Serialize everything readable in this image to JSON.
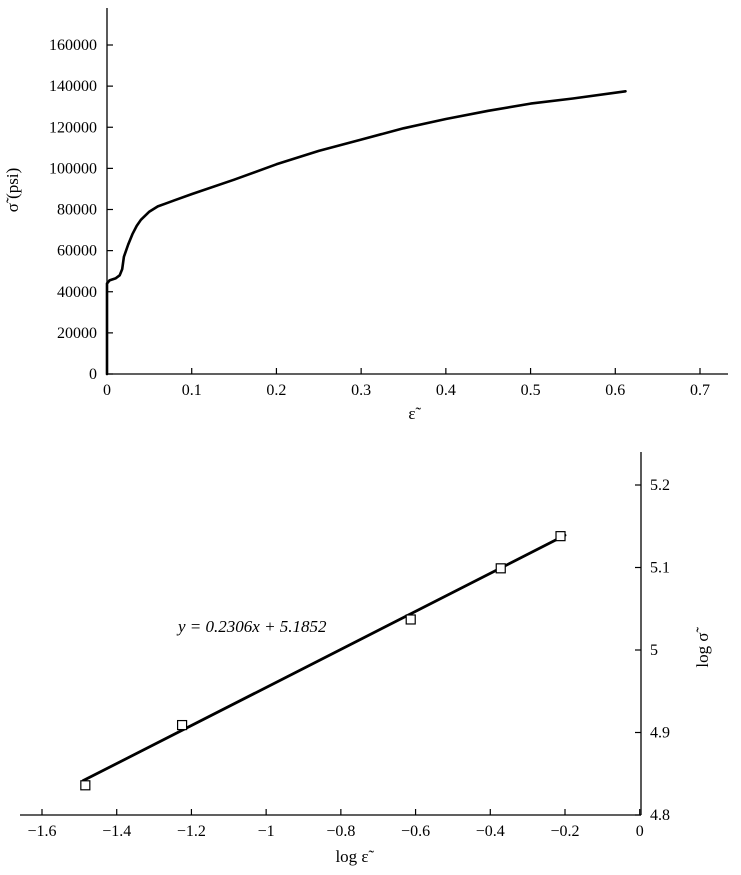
{
  "chart_data": [
    {
      "type": "line",
      "xlabel": "ε̃",
      "ylabel": "σ̃ (psi)",
      "xlim": [
        0,
        0.7
      ],
      "ylim": [
        0,
        160000
      ],
      "xticks": [
        "0",
        "0.1",
        "0.2",
        "0.3",
        "0.4",
        "0.5",
        "0.6",
        "0.7"
      ],
      "yticks": [
        "0",
        "20000",
        "40000",
        "60000",
        "80000",
        "100000",
        "120000",
        "140000",
        "160000"
      ],
      "series": [
        {
          "x": [
            0,
            0,
            0.003,
            0.01,
            0.015,
            0.018,
            0.02,
            0.025,
            0.03,
            0.035,
            0.04,
            0.05,
            0.06,
            0.07,
            0.08,
            0.1,
            0.15,
            0.2,
            0.25,
            0.3,
            0.35,
            0.4,
            0.45,
            0.5,
            0.55,
            0.612
          ],
          "y": [
            0,
            44000,
            45500,
            46500,
            48000,
            51000,
            57000,
            63000,
            68000,
            72000,
            75000,
            79000,
            81500,
            83000,
            84500,
            87500,
            94500,
            102000,
            108500,
            114000,
            119500,
            124000,
            128000,
            131500,
            134000,
            137500
          ]
        }
      ],
      "grid": false
    },
    {
      "type": "scatter",
      "xlabel": "log ε̃",
      "ylabel": "log σ̃",
      "xlim": [
        -1.7,
        0
      ],
      "ylim": [
        4.8,
        5.24
      ],
      "xticks": [
        "−1.6",
        "−1.4",
        "−1.2",
        "−1",
        "−0.8",
        "−0.6",
        "−0.4",
        "−0.2",
        "0"
      ],
      "yticks": [
        "4.8",
        "4.9",
        "5",
        "5.1",
        "5.2"
      ],
      "points": {
        "x": [
          -1.484,
          -1.225,
          -0.613,
          -0.372,
          -0.212
        ],
        "y": [
          4.836,
          4.909,
          5.037,
          5.099,
          5.138
        ]
      },
      "fit": {
        "slope": 0.2306,
        "intercept": 5.1852,
        "x_range": [
          -1.49,
          -0.2
        ]
      },
      "annotation": "y = 0.2306x + 5.1852",
      "grid": false
    }
  ]
}
